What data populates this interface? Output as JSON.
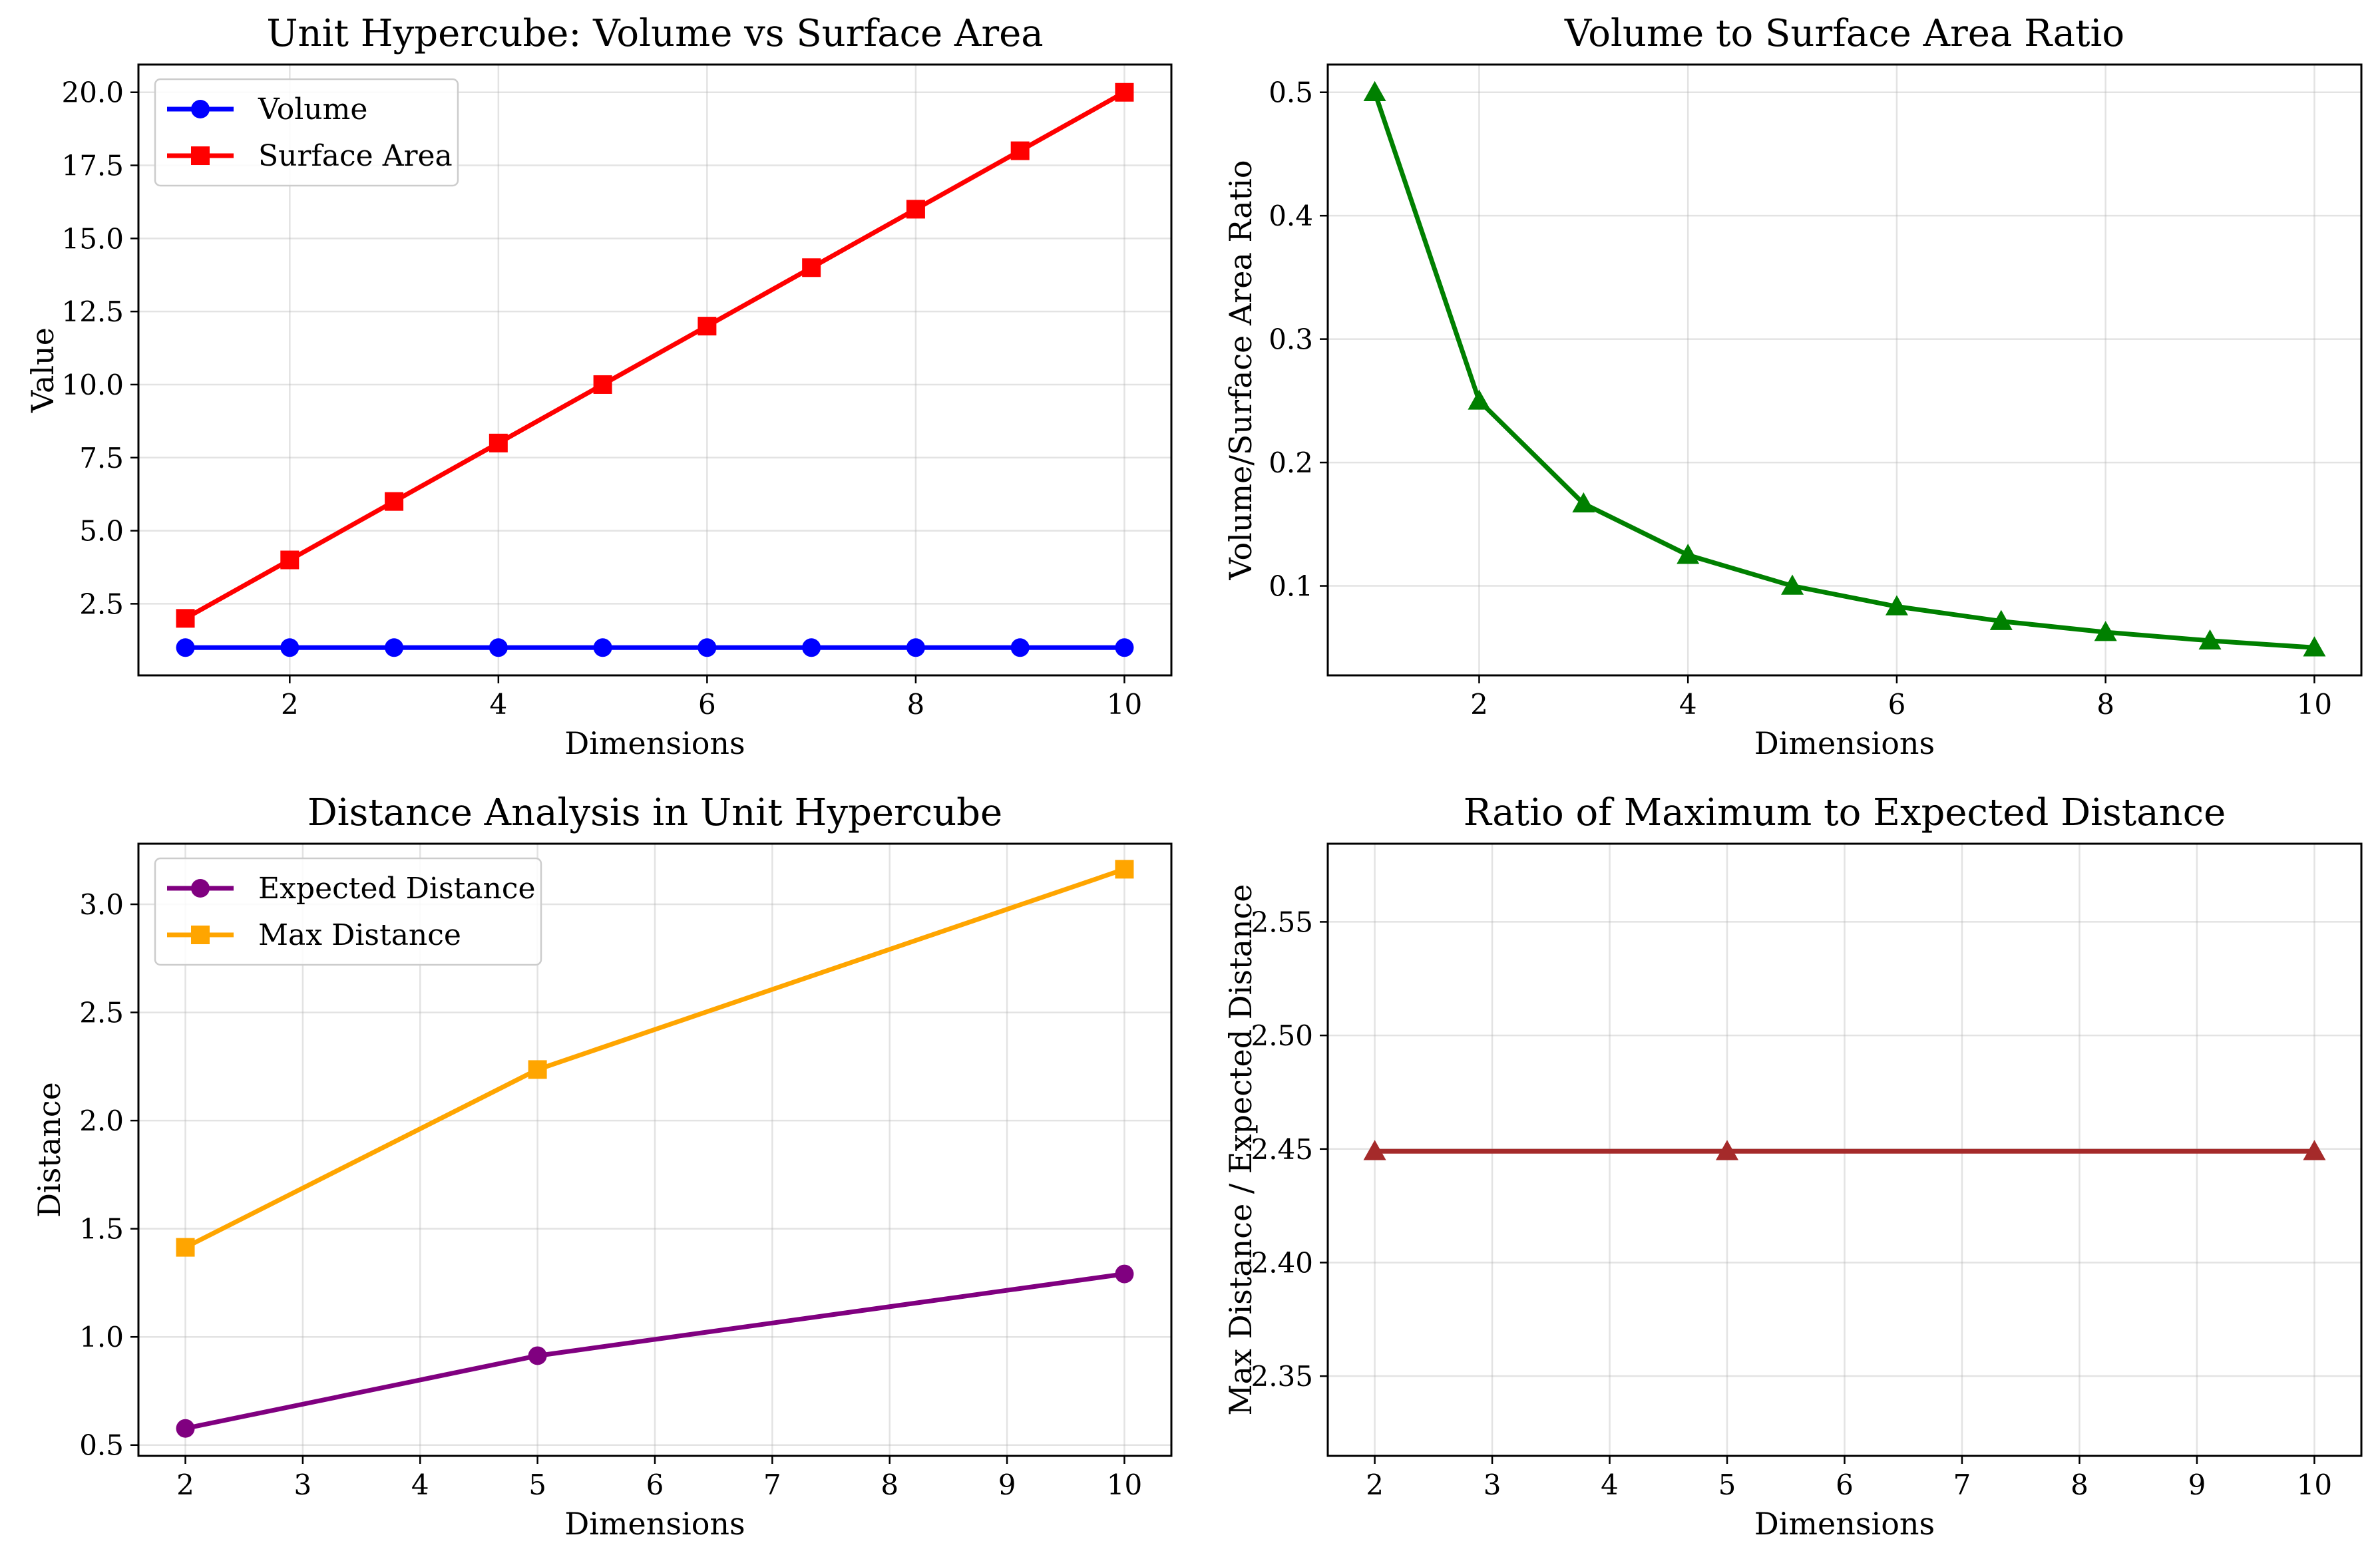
{
  "chart_data": [
    {
      "type": "line",
      "title": "Unit Hypercube: Volume vs Surface Area",
      "xlabel": "Dimensions",
      "ylabel": "Value",
      "xlim": [
        0.55,
        10.45
      ],
      "ylim": [
        0.05,
        20.95
      ],
      "xticks": [
        2,
        4,
        6,
        8,
        10
      ],
      "xtick_labels": [
        "2",
        "4",
        "6",
        "8",
        "10"
      ],
      "yticks": [
        2.5,
        5,
        7.5,
        10,
        12.5,
        15,
        17.5,
        20
      ],
      "ytick_labels": [
        "2.5",
        "5.0",
        "7.5",
        "10.0",
        "12.5",
        "15.0",
        "17.5",
        "20.0"
      ],
      "grid": true,
      "legend": "top-left",
      "series": [
        {
          "name": "Volume",
          "color": "#0000ff",
          "marker": "circle",
          "x": [
            1,
            2,
            3,
            4,
            5,
            6,
            7,
            8,
            9,
            10
          ],
          "values": [
            1,
            1,
            1,
            1,
            1,
            1,
            1,
            1,
            1,
            1
          ]
        },
        {
          "name": "Surface Area",
          "color": "#ff0000",
          "marker": "square",
          "x": [
            1,
            2,
            3,
            4,
            5,
            6,
            7,
            8,
            9,
            10
          ],
          "values": [
            2,
            4,
            6,
            8,
            10,
            12,
            14,
            16,
            18,
            20
          ]
        }
      ]
    },
    {
      "type": "line",
      "title": "Volume to Surface Area Ratio",
      "xlabel": "Dimensions",
      "ylabel": "Volume/Surface Area Ratio",
      "xlim": [
        0.55,
        10.45
      ],
      "ylim": [
        0.0275,
        0.5225
      ],
      "xticks": [
        2,
        4,
        6,
        8,
        10
      ],
      "xtick_labels": [
        "2",
        "4",
        "6",
        "8",
        "10"
      ],
      "yticks": [
        0.1,
        0.2,
        0.3,
        0.4,
        0.5
      ],
      "ytick_labels": [
        "0.1",
        "0.2",
        "0.3",
        "0.4",
        "0.5"
      ],
      "grid": true,
      "legend": "none",
      "series": [
        {
          "color": "#008000",
          "marker": "triangle",
          "x": [
            1,
            2,
            3,
            4,
            5,
            6,
            7,
            8,
            9,
            10
          ],
          "values": [
            0.5,
            0.25,
            0.1667,
            0.125,
            0.1,
            0.0833,
            0.0714,
            0.0625,
            0.0556,
            0.05
          ]
        }
      ]
    },
    {
      "type": "line",
      "title": "Distance Analysis in Unit Hypercube",
      "xlabel": "Dimensions",
      "ylabel": "Distance",
      "xlim": [
        1.6,
        10.4
      ],
      "ylim": [
        0.45,
        3.28
      ],
      "xticks": [
        2,
        3,
        4,
        5,
        6,
        7,
        8,
        9,
        10
      ],
      "xtick_labels": [
        "2",
        "3",
        "4",
        "5",
        "6",
        "7",
        "8",
        "9",
        "10"
      ],
      "yticks": [
        0.5,
        1,
        1.5,
        2,
        2.5,
        3
      ],
      "ytick_labels": [
        "0.5",
        "1.0",
        "1.5",
        "2.0",
        "2.5",
        "3.0"
      ],
      "grid": true,
      "legend": "top-left",
      "series": [
        {
          "name": "Expected Distance",
          "color": "#800080",
          "marker": "circle",
          "x": [
            2,
            5,
            10
          ],
          "values": [
            0.577,
            0.913,
            1.291
          ]
        },
        {
          "name": "Max Distance",
          "color": "#ffa500",
          "marker": "square",
          "x": [
            2,
            5,
            10
          ],
          "values": [
            1.414,
            2.236,
            3.162
          ]
        }
      ]
    },
    {
      "type": "line",
      "title": "Ratio of Maximum to Expected Distance",
      "xlabel": "Dimensions",
      "ylabel": "Max Distance / Expected Distance",
      "xlim": [
        1.6,
        10.4
      ],
      "ylim": [
        2.3149,
        2.5844
      ],
      "xticks": [
        2,
        3,
        4,
        5,
        6,
        7,
        8,
        9,
        10
      ],
      "xtick_labels": [
        "2",
        "3",
        "4",
        "5",
        "6",
        "7",
        "8",
        "9",
        "10"
      ],
      "yticks": [
        2.35,
        2.4,
        2.45,
        2.5,
        2.55
      ],
      "ytick_labels": [
        "2.35",
        "2.40",
        "2.45",
        "2.50",
        "2.55"
      ],
      "grid": true,
      "legend": "none",
      "series": [
        {
          "color": "#a52a2a",
          "marker": "triangle",
          "x": [
            2,
            5,
            10
          ],
          "values": [
            2.449,
            2.449,
            2.449
          ]
        }
      ]
    }
  ]
}
